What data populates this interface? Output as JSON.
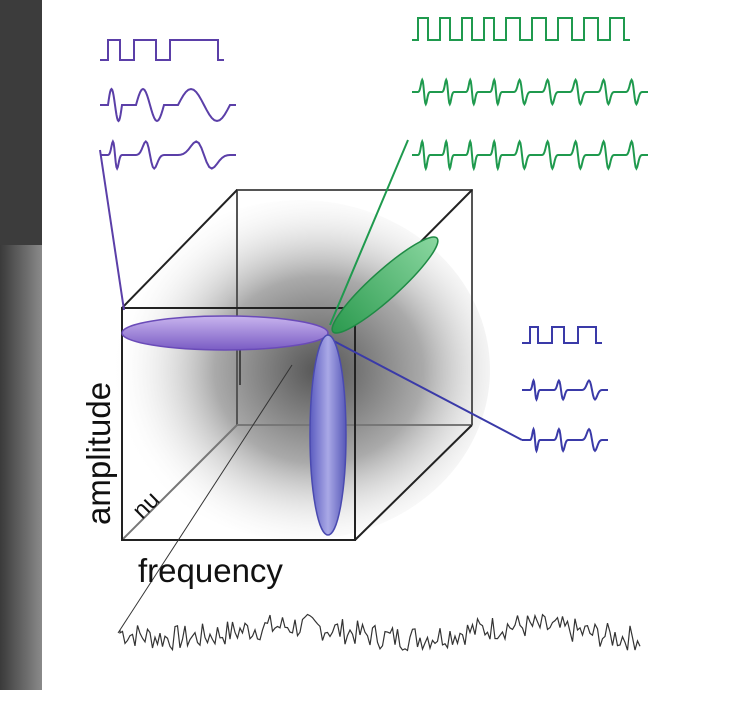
{
  "labels": {
    "vertical_axis": "amplitude",
    "horizontal_axis": "frequency",
    "depth_axis": "nu"
  }
}
